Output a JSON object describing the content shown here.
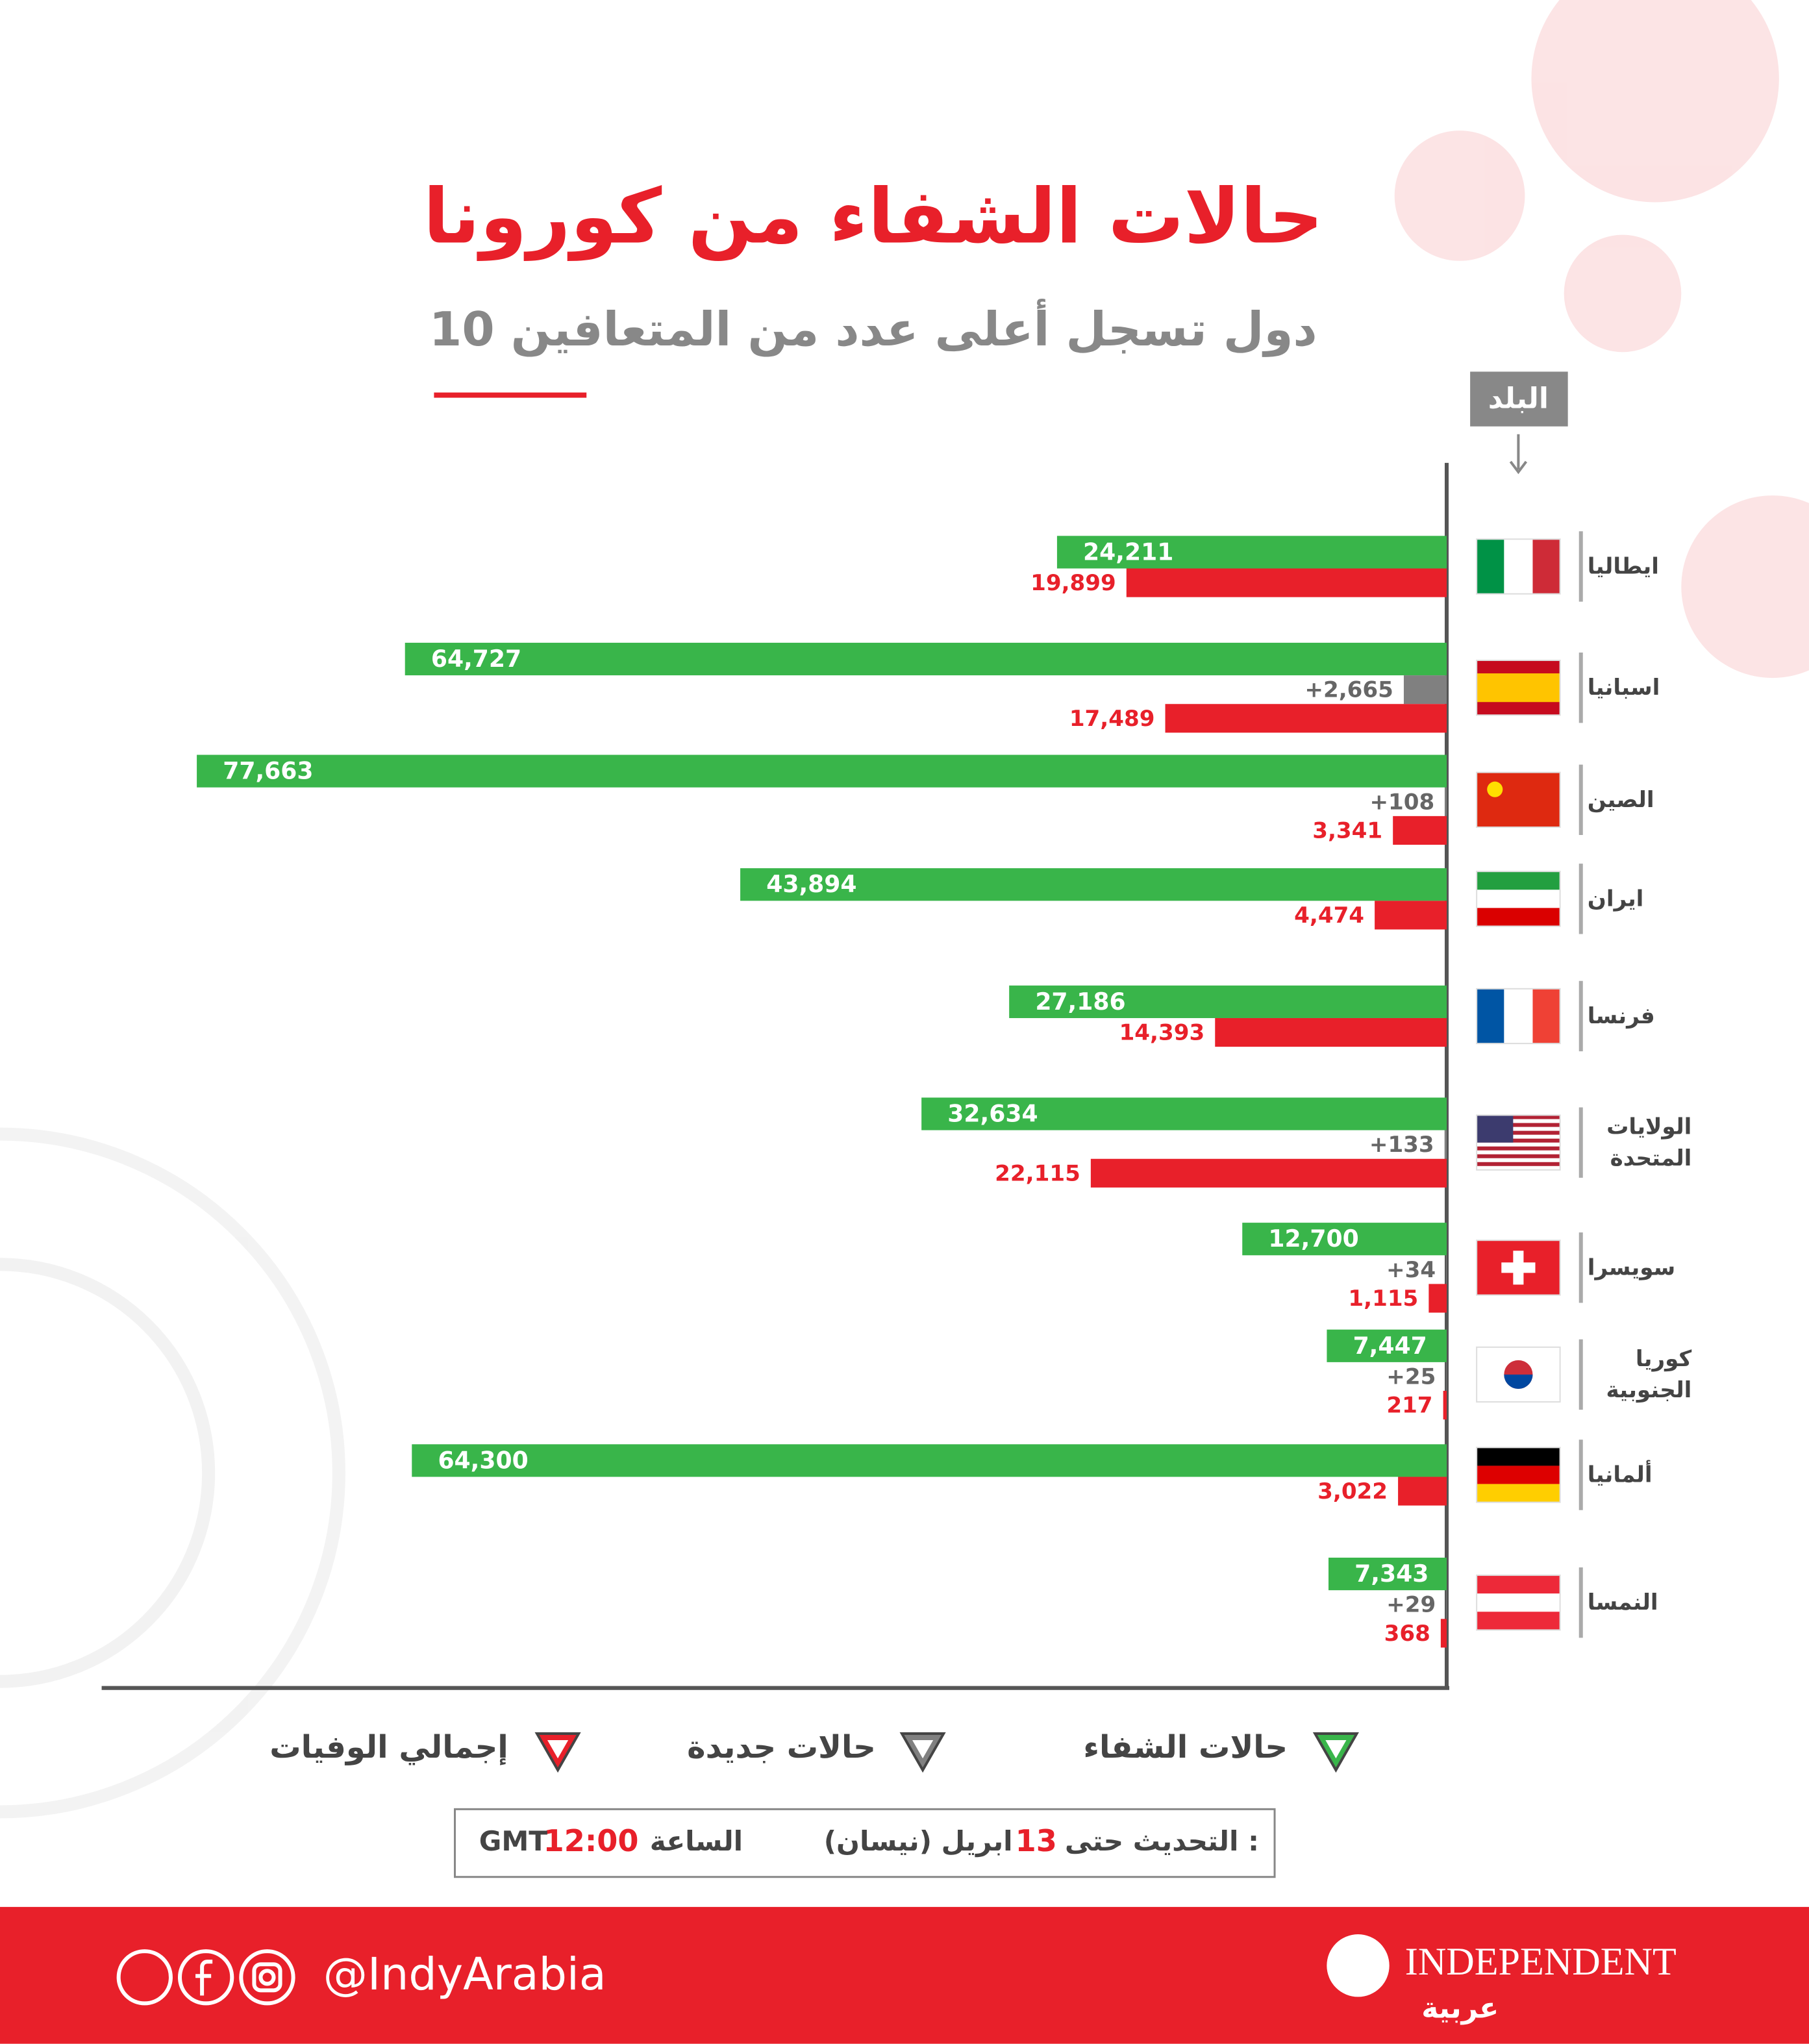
{
  "chart_data": {
    "type": "bar",
    "orientation": "horizontal",
    "title": "حالات الشفاء من كورونا",
    "subtitle": "10 دول تسجل أعلى عدد من المتعافين",
    "category_header": "البلد",
    "categories": [
      "ايطاليا",
      "اسبانيا",
      "الصين",
      "ايران",
      "فرنسا",
      "الولايات المتحدة",
      "سويسرا",
      "كوريا الجنوبية",
      "ألمانيا",
      "النمسا"
    ],
    "series": [
      {
        "name": "حالات الشفاء",
        "color": "#39b54a",
        "values": [
          24211,
          64727,
          77663,
          43894,
          27186,
          32634,
          12700,
          7447,
          64300,
          7343
        ],
        "value_labels": [
          "24,211",
          "64,727",
          "77,663",
          "43,894",
          "27,186",
          "32,634",
          "12,700",
          "7,447",
          "64,300",
          "7,343"
        ]
      },
      {
        "name": "حالات جديدة",
        "color": "#808080",
        "values": [
          null,
          2665,
          108,
          null,
          null,
          133,
          34,
          25,
          null,
          29
        ],
        "value_labels": [
          null,
          "+2,665",
          "+108",
          null,
          null,
          "+133",
          "+34",
          "+25",
          null,
          "+29"
        ]
      },
      {
        "name": "إجمالي الوفيات",
        "color": "#e8202a",
        "values": [
          19899,
          17489,
          3341,
          4474,
          14393,
          22115,
          1115,
          217,
          3022,
          368
        ],
        "value_labels": [
          "19,899",
          "17,489",
          "3,341",
          "4,474",
          "14,393",
          "22,115",
          "1,115",
          "217",
          "3,022",
          "368"
        ]
      }
    ]
  },
  "update": {
    "label": "التحديث حتى :",
    "day": "13",
    "month": "ابريل (نيسان)",
    "time_label": "الساعة",
    "time": "12:00",
    "zone": "GMT"
  },
  "footer": {
    "handle": "@IndyArabia",
    "brand": "INDEPENDENT",
    "brand_ar": "عربية"
  }
}
